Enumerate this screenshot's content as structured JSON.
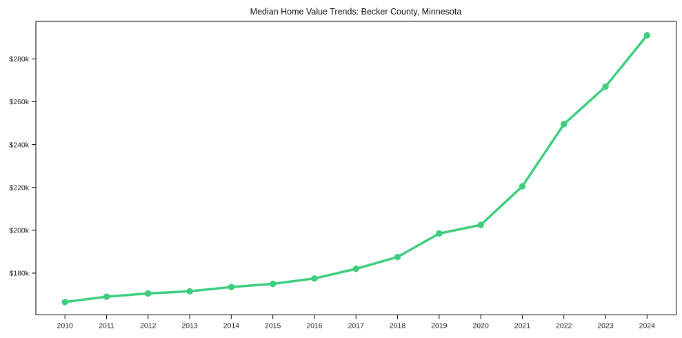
{
  "figure": {
    "background": "#ffffff"
  },
  "chart_data": {
    "type": "line",
    "title": "Median Home Value Trends: Becker County, Minnesota",
    "xlabel": "",
    "ylabel": "",
    "value_unit": "USD thousands (shown as $Nk)",
    "x": [
      2010,
      2011,
      2012,
      2013,
      2014,
      2015,
      2016,
      2017,
      2018,
      2019,
      2020,
      2021,
      2022,
      2023,
      2024
    ],
    "x_tick_labels": [
      "2010",
      "2011",
      "2012",
      "2013",
      "2014",
      "2015",
      "2016",
      "2017",
      "2018",
      "2019",
      "2020",
      "2021",
      "2022",
      "2023",
      "2024"
    ],
    "series": [
      {
        "name": "Median home value",
        "color": "#3ccd7d",
        "marker": "circle",
        "values": [
          166.5,
          169,
          170.5,
          171.5,
          173.5,
          175,
          177.5,
          182,
          187.5,
          198.5,
          202.5,
          220.5,
          249.5,
          267,
          291
        ]
      }
    ],
    "y_ticks": [
      {
        "value": 180,
        "label": "$180k"
      },
      {
        "value": 200,
        "label": "$200k"
      },
      {
        "value": 220,
        "label": "$220k"
      },
      {
        "value": 240,
        "label": "$240k"
      },
      {
        "value": 260,
        "label": "$260k"
      },
      {
        "value": 280,
        "label": "$280k"
      }
    ],
    "xlim": [
      2009.3,
      2024.7
    ],
    "ylim": [
      160.5,
      297.5
    ],
    "grid": false,
    "legend_position": "none",
    "frame": "box",
    "axis_color": "#000000",
    "text_color": "#1a1a1a"
  }
}
